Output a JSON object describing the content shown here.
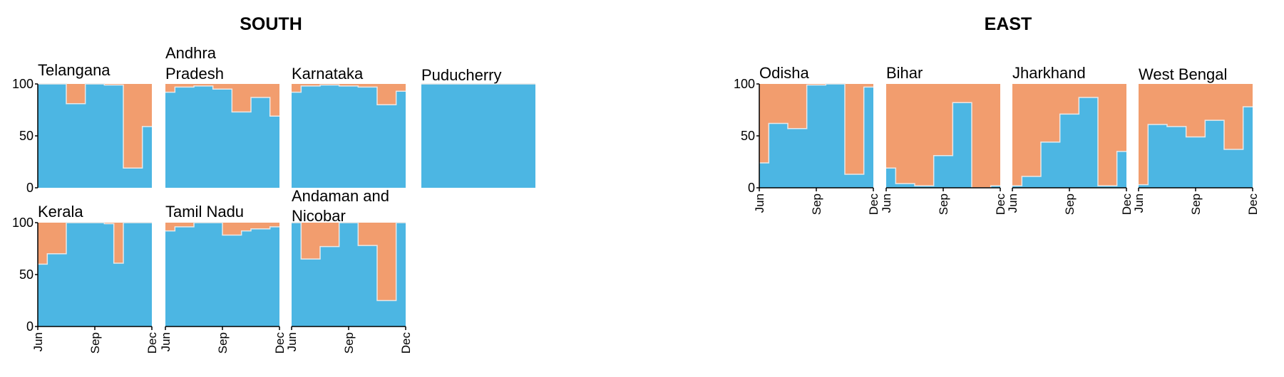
{
  "colors": {
    "blue": "#4cb6e3",
    "orange": "#f29d6e",
    "axis": "#000000",
    "step_line": "#e8e8e8"
  },
  "chart_data": [
    {
      "type": "area",
      "title": "SOUTH",
      "x_ticks": [
        "Jun",
        "Sep",
        "Dec"
      ],
      "y_ticks": [
        0,
        50,
        100
      ],
      "ylim": [
        0,
        100
      ],
      "periods": 12,
      "stack_colors": {
        "blue": "lower share",
        "orange": "upper share"
      },
      "panels": [
        {
          "name": "Telangana",
          "values": [
            100,
            100,
            100,
            81,
            81,
            100,
            100,
            99,
            99,
            19,
            19,
            59
          ]
        },
        {
          "name": "Andhra Pradesh",
          "values": [
            92,
            97,
            97,
            98,
            98,
            95,
            95,
            73,
            73,
            87,
            87,
            69
          ]
        },
        {
          "name": "Karnataka",
          "values": [
            92,
            98,
            98,
            99,
            99,
            98,
            98,
            97,
            97,
            80,
            80,
            93
          ]
        },
        {
          "name": "Puducherry",
          "values": [
            100,
            100,
            100,
            100,
            100,
            100,
            100,
            100,
            100,
            100,
            100,
            100
          ]
        },
        {
          "name": "Kerala",
          "values": [
            60,
            70,
            70,
            100,
            100,
            100,
            100,
            99,
            61,
            100,
            100,
            100
          ]
        },
        {
          "name": "Tamil Nadu",
          "values": [
            92,
            96,
            96,
            100,
            100,
            100,
            88,
            88,
            92,
            94,
            94,
            96
          ]
        },
        {
          "name": "Andaman and Nicobar",
          "values": [
            100,
            65,
            65,
            77,
            77,
            100,
            100,
            78,
            78,
            25,
            25,
            100
          ]
        }
      ]
    },
    {
      "type": "area",
      "title": "EAST",
      "x_ticks": [
        "Jun",
        "Sep",
        "Dec"
      ],
      "y_ticks": [
        0,
        50,
        100
      ],
      "ylim": [
        0,
        100
      ],
      "periods": 12,
      "stack_colors": {
        "blue": "lower share",
        "orange": "upper share"
      },
      "panels": [
        {
          "name": "Odisha",
          "values": [
            24,
            62,
            62,
            57,
            57,
            99,
            99,
            100,
            100,
            13,
            13,
            97
          ]
        },
        {
          "name": "Bihar",
          "values": [
            19,
            4,
            4,
            2,
            2,
            31,
            31,
            82,
            82,
            0,
            0,
            2
          ]
        },
        {
          "name": "Jharkhand",
          "values": [
            2,
            11,
            11,
            44,
            44,
            71,
            71,
            87,
            87,
            2,
            2,
            35
          ]
        },
        {
          "name": "West Bengal",
          "values": [
            3,
            61,
            61,
            59,
            59,
            49,
            49,
            65,
            65,
            37,
            37,
            78
          ]
        }
      ]
    }
  ]
}
